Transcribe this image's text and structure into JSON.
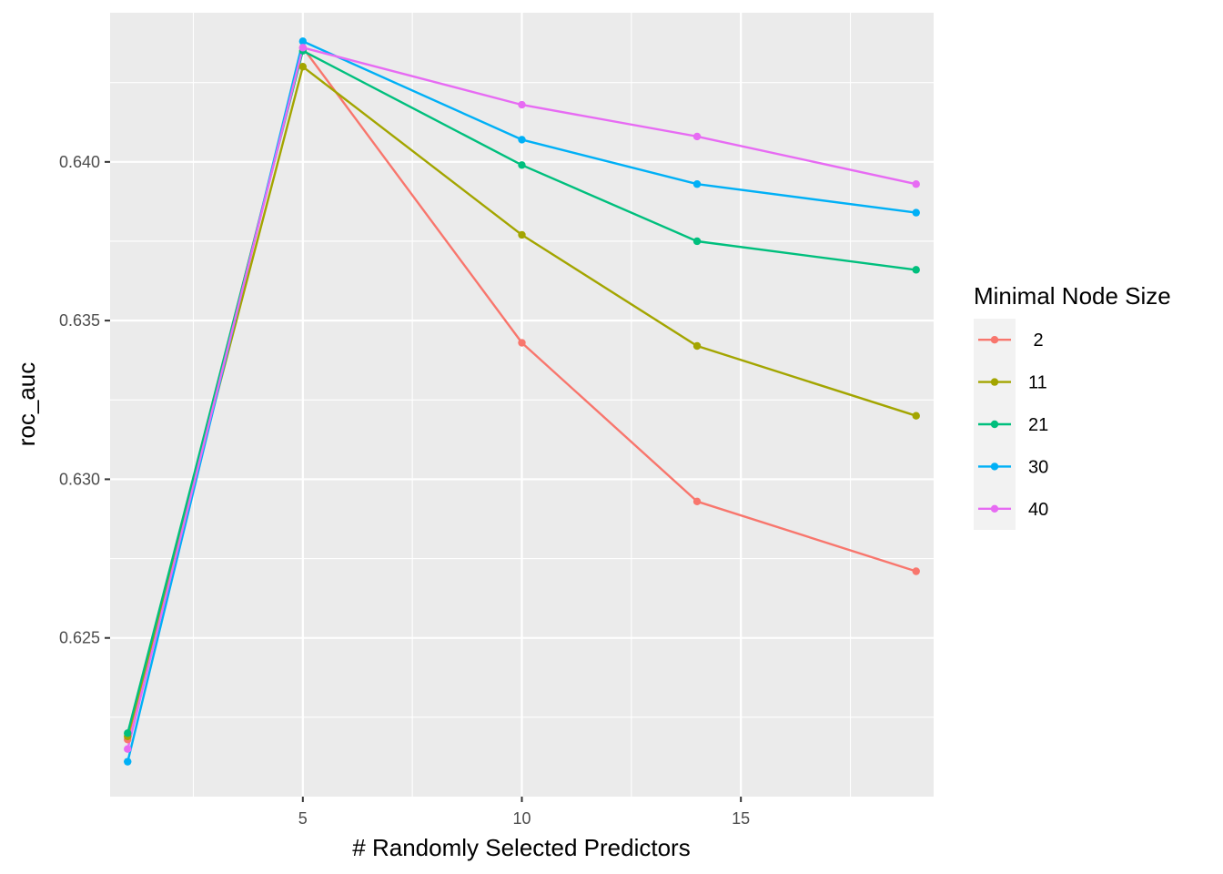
{
  "chart_data": {
    "type": "line",
    "title": "",
    "xlabel": "# Randomly Selected Predictors",
    "ylabel": "roc_auc",
    "xlim": [
      0.6,
      19.4
    ],
    "ylim": [
      0.62,
      0.6447
    ],
    "x_ticks": [
      5,
      10,
      15
    ],
    "x_tick_labels": [
      "5",
      "10",
      "15"
    ],
    "x_minor_ticks": [
      2.5,
      7.5,
      12.5,
      17.5
    ],
    "y_ticks": [
      0.625,
      0.63,
      0.635,
      0.64
    ],
    "y_tick_labels": [
      "0.625",
      "0.630",
      "0.635",
      "0.640"
    ],
    "y_minor_ticks": [
      0.6225,
      0.6275,
      0.6325,
      0.6375,
      0.6425
    ],
    "grid": true,
    "legend": {
      "title": "Minimal Node Size",
      "placement": "right"
    },
    "x": [
      1,
      5,
      10,
      14,
      19
    ],
    "series": [
      {
        "name": " 2",
        "color": "#F8766D",
        "values": [
          0.6218,
          0.6436,
          0.6343,
          0.6293,
          0.6271
        ]
      },
      {
        "name": "11",
        "color": "#A3A500",
        "values": [
          0.6219,
          0.643,
          0.6377,
          0.6342,
          0.632
        ]
      },
      {
        "name": "21",
        "color": "#00BF7D",
        "values": [
          0.622,
          0.6435,
          0.6399,
          0.6375,
          0.6366
        ]
      },
      {
        "name": "30",
        "color": "#00B0F6",
        "values": [
          0.6211,
          0.6438,
          0.6407,
          0.6393,
          0.6384
        ]
      },
      {
        "name": "40",
        "color": "#E76BF3",
        "values": [
          0.6215,
          0.6436,
          0.6418,
          0.6408,
          0.6393
        ]
      }
    ]
  }
}
